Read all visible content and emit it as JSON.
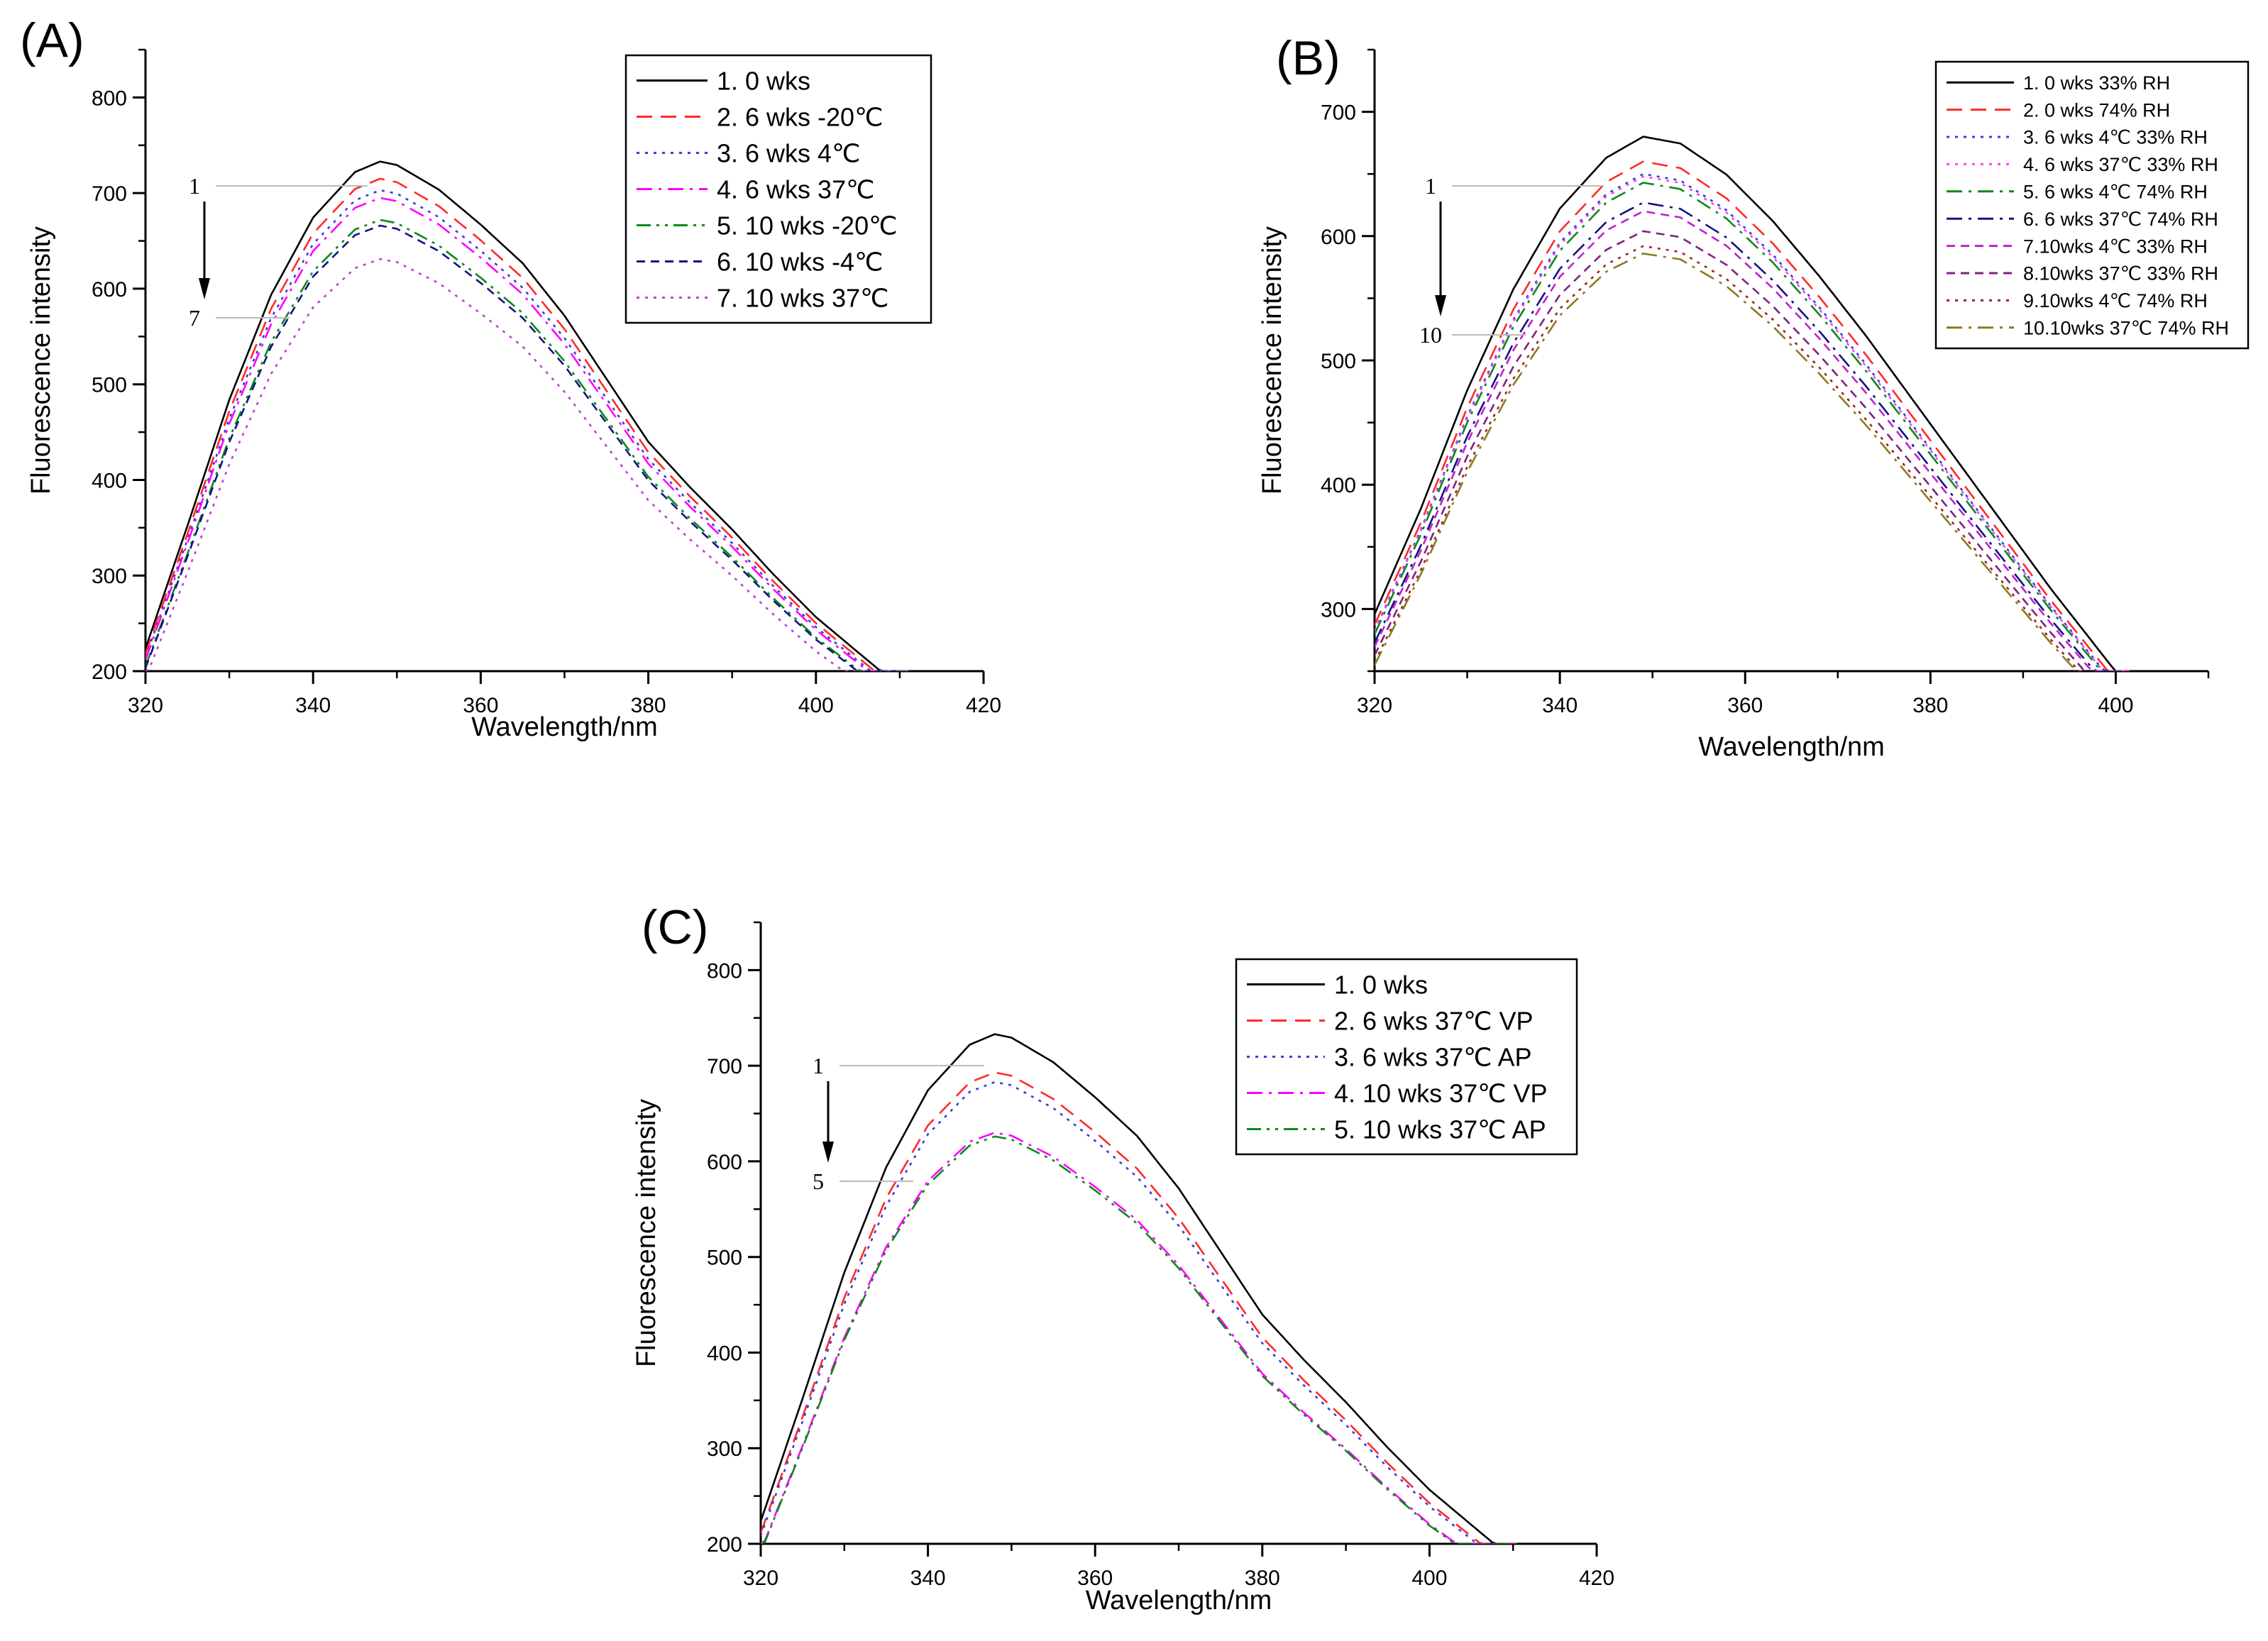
{
  "figure": {
    "panels": [
      "(A)",
      "(B)",
      "(C)"
    ]
  },
  "chart_data": [
    {
      "type": "line",
      "panel": "(A)",
      "xlabel": "Wavelength/nm",
      "ylabel": "Fluorescence intensity",
      "xlim": [
        320,
        420
      ],
      "ylim": [
        200,
        850
      ],
      "xticks": [
        "320",
        "340",
        "360",
        "380",
        "400",
        "420"
      ],
      "yticks": [
        "200",
        "300",
        "400",
        "500",
        "600",
        "700",
        "800"
      ],
      "legend_position": "top-right",
      "annotation": {
        "top": "1",
        "bottom": "7"
      },
      "series": [
        {
          "name": "1. 0 wks",
          "peak": 733,
          "color": "#000000",
          "dash": "solid"
        },
        {
          "name": "2. 6 wks -20℃",
          "peak": 715,
          "color": "#ff2a2a",
          "dash": "dash"
        },
        {
          "name": "3. 6 wks 4℃",
          "peak": 703,
          "color": "#3a3ae0",
          "dash": "dot"
        },
        {
          "name": "4. 6 wks 37℃",
          "peak": 695,
          "color": "#ff00ff",
          "dash": "dashdot"
        },
        {
          "name": "5. 10 wks -20℃",
          "peak": 672,
          "color": "#0a8a1a",
          "dash": "dashdotdot"
        },
        {
          "name": "6. 10 wks -4℃",
          "peak": 666,
          "color": "#141480",
          "dash": "shortdash"
        },
        {
          "name": "7. 10 wks 37℃",
          "peak": 631,
          "color": "#c040d0",
          "dash": "dot"
        }
      ]
    },
    {
      "type": "line",
      "panel": "(B)",
      "xlabel": "Wavelength/nm",
      "ylabel": "Fluorescence intensity",
      "xlim": [
        320,
        410
      ],
      "ylim": [
        250,
        750
      ],
      "xticks": [
        "320",
        "340",
        "360",
        "380",
        "400"
      ],
      "yticks": [
        "300",
        "400",
        "500",
        "600",
        "700"
      ],
      "legend_position": "top-right",
      "annotation": {
        "top": "1",
        "bottom": "10"
      },
      "series": [
        {
          "name": "1. 0 wks 33% RH",
          "peak": 680,
          "end": 403,
          "color": "#000000",
          "dash": "solid"
        },
        {
          "name": "2. 0 wks 74% RH",
          "peak": 660,
          "end": 401.5,
          "color": "#ff2a2a",
          "dash": "dash"
        },
        {
          "name": "3. 6 wks  4℃  33% RH",
          "peak": 650,
          "end": 401,
          "color": "#3a3ae0",
          "dash": "dot"
        },
        {
          "name": "4. 6 wks 37℃ 33% RH",
          "peak": 648,
          "end": 401,
          "color": "#ff40ff",
          "dash": "dot"
        },
        {
          "name": "5. 6 wks  4℃  74% RH",
          "peak": 643,
          "end": 400.5,
          "color": "#0a8a1a",
          "dash": "dashdot"
        },
        {
          "name": "6. 6 wks 37℃ 74% RH",
          "peak": 627,
          "end": 400,
          "color": "#141480",
          "dash": "dashdot"
        },
        {
          "name": "7.10wks  4℃  33% RH",
          "peak": 620,
          "end": 400,
          "color": "#c020d0",
          "dash": "shortdash"
        },
        {
          "name": "8.10wks 37℃ 33% RH",
          "peak": 604,
          "end": 397,
          "color": "#802080",
          "dash": "shortdash"
        },
        {
          "name": "9.10wks  4℃  74% RH",
          "peak": 592,
          "end": 396.5,
          "color": "#a02020",
          "dash": "dot"
        },
        {
          "name": "10.10wks 37℃ 74% RH",
          "peak": 586,
          "end": 396.5,
          "color": "#8a7a20",
          "dash": "dashdot"
        }
      ]
    },
    {
      "type": "line",
      "panel": "(C)",
      "xlabel": "Wavelength/nm",
      "ylabel": "Fluorescence intensity",
      "xlim": [
        320,
        420
      ],
      "ylim": [
        200,
        850
      ],
      "xticks": [
        "320",
        "340",
        "360",
        "380",
        "400",
        "420"
      ],
      "yticks": [
        "200",
        "300",
        "400",
        "500",
        "600",
        "700",
        "800"
      ],
      "legend_position": "top-right",
      "annotation": {
        "top": "1",
        "bottom": "5"
      },
      "series": [
        {
          "name": "1. 0 wks",
          "peak": 733,
          "color": "#000000",
          "dash": "solid"
        },
        {
          "name": "2. 6 wks 37℃ VP",
          "peak": 693,
          "color": "#ff2a2a",
          "dash": "dash"
        },
        {
          "name": "3. 6 wks 37℃ AP",
          "peak": 683,
          "color": "#3a3ae0",
          "dash": "dot"
        },
        {
          "name": "4. 10 wks 37℃ VP",
          "peak": 630,
          "color": "#ff00ff",
          "dash": "dashdot"
        },
        {
          "name": "5. 10 wks 37℃ AP",
          "peak": 626,
          "color": "#0a8a1a",
          "dash": "dashdotdot"
        }
      ]
    }
  ]
}
